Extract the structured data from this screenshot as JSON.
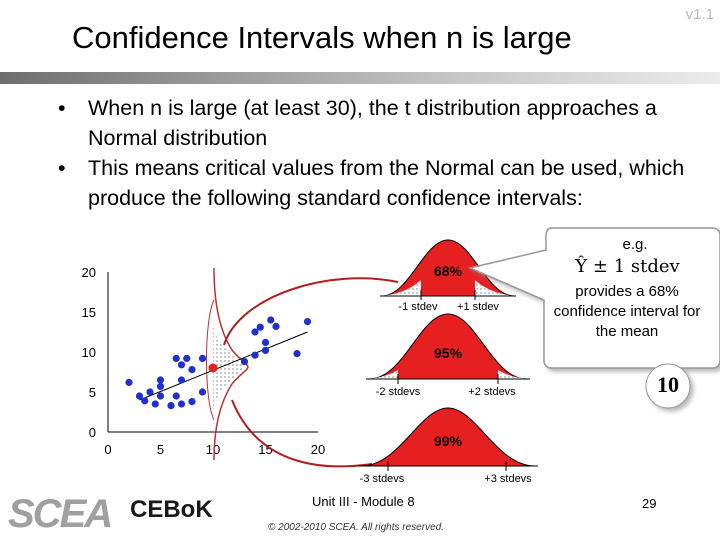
{
  "header": {
    "title": "Confidence Intervals when n is large",
    "version": "v1.1"
  },
  "bullets": [
    {
      "marker": "•",
      "text": "When n is large (at least 30), the t distribution approaches a Normal distribution"
    },
    {
      "marker": "•",
      "text": "This means critical values from the Normal can be used, which produce the following standard confidence intervals:"
    }
  ],
  "scatter_chart": {
    "type": "scatter",
    "x_ticks": [
      "0",
      "5",
      "10",
      "15",
      "20"
    ],
    "y_ticks": [
      "0",
      "5",
      "10",
      "15",
      "20"
    ],
    "xlim": [
      0,
      20
    ],
    "ylim": [
      0,
      20
    ],
    "points": [
      {
        "x": 2,
        "y": 6.2
      },
      {
        "x": 3,
        "y": 4.5
      },
      {
        "x": 3.5,
        "y": 3.9
      },
      {
        "x": 4,
        "y": 5.0
      },
      {
        "x": 4.5,
        "y": 3.5
      },
      {
        "x": 5,
        "y": 5.7
      },
      {
        "x": 5,
        "y": 4.5
      },
      {
        "x": 5,
        "y": 6.5
      },
      {
        "x": 6,
        "y": 3.3
      },
      {
        "x": 6.5,
        "y": 4.5
      },
      {
        "x": 6.5,
        "y": 9.2
      },
      {
        "x": 7,
        "y": 3.5
      },
      {
        "x": 7,
        "y": 6.5
      },
      {
        "x": 7,
        "y": 8.4
      },
      {
        "x": 7.5,
        "y": 9.2
      },
      {
        "x": 8,
        "y": 3.8
      },
      {
        "x": 8,
        "y": 7.8
      },
      {
        "x": 9,
        "y": 9.2
      },
      {
        "x": 9,
        "y": 5.0
      },
      {
        "x": 13,
        "y": 8.8
      },
      {
        "x": 14,
        "y": 9.6
      },
      {
        "x": 14,
        "y": 12.5
      },
      {
        "x": 15,
        "y": 10.2
      },
      {
        "x": 15,
        "y": 11.2
      },
      {
        "x": 16,
        "y": 13.2
      },
      {
        "x": 18,
        "y": 9.8
      },
      {
        "x": 19,
        "y": 13.8
      },
      {
        "x": 14.5,
        "y": 13.1
      },
      {
        "x": 15.5,
        "y": 14.0
      }
    ],
    "highlight_point": {
      "x": 10,
      "y": 8.0
    },
    "trend_line": [
      {
        "x": 3,
        "y": 4.0
      },
      {
        "x": 19,
        "y": 12.5
      }
    ]
  },
  "curves": [
    {
      "percent": "68%",
      "left_label": "-1 stdev",
      "right_label": "+1 stdev"
    },
    {
      "percent": "95%",
      "left_label": "-2 stdevs",
      "right_label": "+2 stdevs"
    },
    {
      "percent": "99%",
      "left_label": "-3 stdevs",
      "right_label": "+3 stdevs"
    }
  ],
  "callout": {
    "label": "e.g.",
    "formula": "Ŷ ± 1 stdev",
    "text": "provides a 68% confidence interval for the mean"
  },
  "badge": "10",
  "footer": {
    "module": "Unit III - Module 8",
    "copyright": "© 2002-2010 SCEA. All rights reserved.",
    "page": "29",
    "logo_left": "SCEA",
    "logo_right": "CEBoK"
  },
  "colors": {
    "curve_fill": "#e62020",
    "point_blue": "#1f2fd0",
    "point_red": "#e62020",
    "connector": "#b02020",
    "callout_border": "#999999"
  }
}
